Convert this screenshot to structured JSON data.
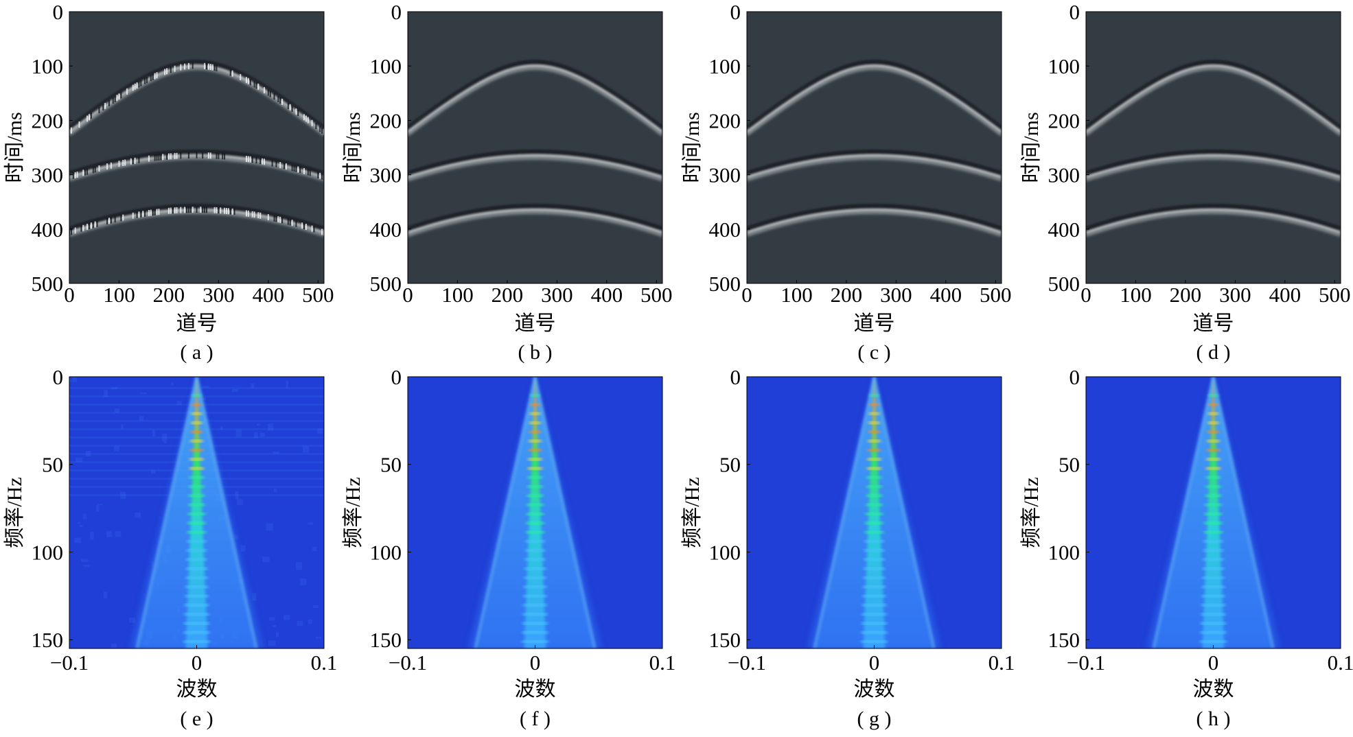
{
  "chart_data": [
    {
      "type": "heatmap",
      "caption": "( a )",
      "ylabel": "时间/ms",
      "xlabel": "道号",
      "xlim": [
        0,
        512
      ],
      "ylim": [
        500,
        0
      ],
      "xticks": [
        "0",
        "100",
        "200",
        "300",
        "400",
        "500"
      ],
      "yticks": [
        "0",
        "100",
        "200",
        "300",
        "400",
        "500"
      ],
      "xtick_values": [
        0,
        100,
        200,
        300,
        400,
        500
      ],
      "ytick_values": [
        0,
        100,
        200,
        300,
        400,
        500
      ],
      "background": "#343c43",
      "noisy": true,
      "events": [
        {
          "apex_trace": 256,
          "apex_time_ms": 100,
          "edge_time_ms": 222
        },
        {
          "apex_trace": 256,
          "apex_time_ms": 265,
          "edge_time_ms": 305
        },
        {
          "apex_trace": 256,
          "apex_time_ms": 365,
          "edge_time_ms": 407
        }
      ]
    },
    {
      "type": "heatmap",
      "caption": "( b )",
      "ylabel": "时间/ms",
      "xlabel": "道号",
      "xlim": [
        0,
        512
      ],
      "ylim": [
        500,
        0
      ],
      "xticks": [
        "0",
        "100",
        "200",
        "300",
        "400",
        "500"
      ],
      "yticks": [
        "0",
        "100",
        "200",
        "300",
        "400",
        "500"
      ],
      "xtick_values": [
        0,
        100,
        200,
        300,
        400,
        500
      ],
      "ytick_values": [
        0,
        100,
        200,
        300,
        400,
        500
      ],
      "background": "#343c43",
      "noisy": false,
      "events": [
        {
          "apex_trace": 256,
          "apex_time_ms": 100,
          "edge_time_ms": 222
        },
        {
          "apex_trace": 256,
          "apex_time_ms": 265,
          "edge_time_ms": 305
        },
        {
          "apex_trace": 256,
          "apex_time_ms": 365,
          "edge_time_ms": 407
        }
      ]
    },
    {
      "type": "heatmap",
      "caption": "( c )",
      "ylabel": "时间/ms",
      "xlabel": "道号",
      "xlim": [
        0,
        512
      ],
      "ylim": [
        500,
        0
      ],
      "xticks": [
        "0",
        "100",
        "200",
        "300",
        "400",
        "500"
      ],
      "yticks": [
        "0",
        "100",
        "200",
        "300",
        "400",
        "500"
      ],
      "xtick_values": [
        0,
        100,
        200,
        300,
        400,
        500
      ],
      "ytick_values": [
        0,
        100,
        200,
        300,
        400,
        500
      ],
      "background": "#343c43",
      "noisy": false,
      "events": [
        {
          "apex_trace": 256,
          "apex_time_ms": 100,
          "edge_time_ms": 222
        },
        {
          "apex_trace": 256,
          "apex_time_ms": 265,
          "edge_time_ms": 305
        },
        {
          "apex_trace": 256,
          "apex_time_ms": 365,
          "edge_time_ms": 407
        }
      ]
    },
    {
      "type": "heatmap",
      "caption": "( d )",
      "ylabel": "时间/ms",
      "xlabel": "道号",
      "xlim": [
        0,
        512
      ],
      "ylim": [
        500,
        0
      ],
      "xticks": [
        "0",
        "100",
        "200",
        "300",
        "400",
        "500"
      ],
      "yticks": [
        "0",
        "100",
        "200",
        "300",
        "400",
        "500"
      ],
      "xtick_values": [
        0,
        100,
        200,
        300,
        400,
        500
      ],
      "ytick_values": [
        0,
        100,
        200,
        300,
        400,
        500
      ],
      "background": "#343c43",
      "noisy": false,
      "events": [
        {
          "apex_trace": 256,
          "apex_time_ms": 100,
          "edge_time_ms": 222
        },
        {
          "apex_trace": 256,
          "apex_time_ms": 265,
          "edge_time_ms": 305
        },
        {
          "apex_trace": 256,
          "apex_time_ms": 365,
          "edge_time_ms": 407
        }
      ]
    },
    {
      "type": "heatmap",
      "caption": "( e )",
      "ylabel": "频率/Hz",
      "xlabel": "波数",
      "xlim": [
        -0.1,
        0.1
      ],
      "ylim": [
        155,
        0
      ],
      "xticks": [
        "−0.1",
        "0",
        "0.1"
      ],
      "yticks": [
        "0",
        "50",
        "100",
        "150"
      ],
      "xtick_values": [
        -0.1,
        0,
        0.1
      ],
      "ytick_values": [
        0,
        50,
        100,
        150
      ],
      "background": "#1f3fd6",
      "noisy": true,
      "cone_halfwidth_at_max_freq": 0.047,
      "peak_band_hz": [
        15,
        55
      ]
    },
    {
      "type": "heatmap",
      "caption": "( f )",
      "ylabel": "频率/Hz",
      "xlabel": "波数",
      "xlim": [
        -0.1,
        0.1
      ],
      "ylim": [
        155,
        0
      ],
      "xticks": [
        "−0.1",
        "0",
        "0.1"
      ],
      "yticks": [
        "0",
        "50",
        "100",
        "150"
      ],
      "xtick_values": [
        -0.1,
        0,
        0.1
      ],
      "ytick_values": [
        0,
        50,
        100,
        150
      ],
      "background": "#1f3fd6",
      "noisy": false,
      "cone_halfwidth_at_max_freq": 0.047,
      "peak_band_hz": [
        15,
        55
      ]
    },
    {
      "type": "heatmap",
      "caption": "( g )",
      "ylabel": "频率/Hz",
      "xlabel": "波数",
      "xlim": [
        -0.1,
        0.1
      ],
      "ylim": [
        155,
        0
      ],
      "xticks": [
        "−0.1",
        "0",
        "0.1"
      ],
      "yticks": [
        "0",
        "50",
        "100",
        "150"
      ],
      "xtick_values": [
        -0.1,
        0,
        0.1
      ],
      "ytick_values": [
        0,
        50,
        100,
        150
      ],
      "background": "#1f3fd6",
      "noisy": false,
      "cone_halfwidth_at_max_freq": 0.047,
      "peak_band_hz": [
        15,
        55
      ]
    },
    {
      "type": "heatmap",
      "caption": "( h )",
      "ylabel": "频率/Hz",
      "xlabel": "波数",
      "xlim": [
        -0.1,
        0.1
      ],
      "ylim": [
        155,
        0
      ],
      "xticks": [
        "−0.1",
        "0",
        "0.1"
      ],
      "yticks": [
        "0",
        "50",
        "100",
        "150"
      ],
      "xtick_values": [
        -0.1,
        0,
        0.1
      ],
      "ytick_values": [
        0,
        50,
        100,
        150
      ],
      "background": "#1f3fd6",
      "noisy": false,
      "cone_halfwidth_at_max_freq": 0.047,
      "peak_band_hz": [
        15,
        55
      ]
    }
  ]
}
